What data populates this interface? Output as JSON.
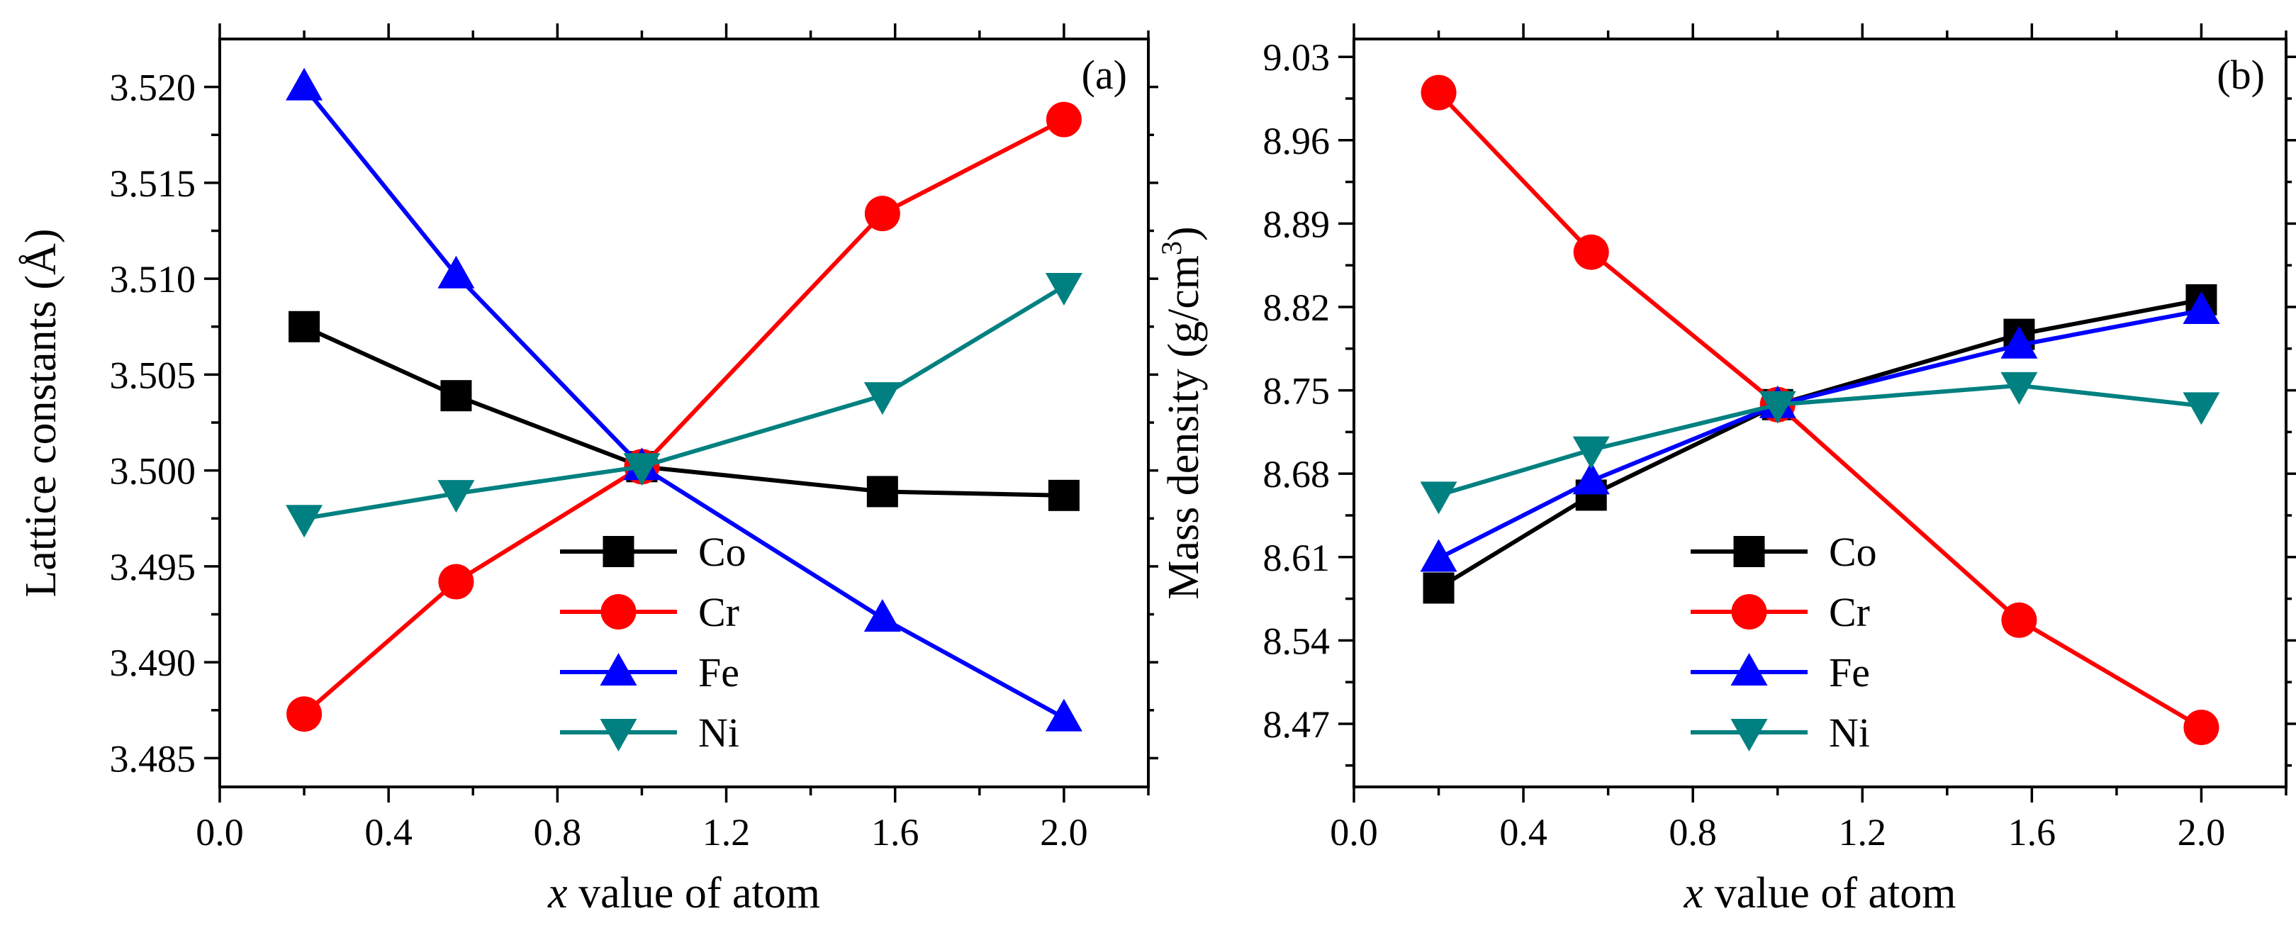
{
  "figure": {
    "panels": [
      {
        "label": "(a)"
      },
      {
        "label": "(b)"
      }
    ]
  },
  "chart_data": [
    {
      "type": "line",
      "panel": "(a)",
      "title": "",
      "xlabel_italic": "x",
      "xlabel_rest": " value of atom",
      "ylabel": "Lattice constants (Å)",
      "xlim": [
        0.0,
        2.2
      ],
      "ylim": [
        3.4835,
        3.5225
      ],
      "xticks": [
        0.0,
        0.4,
        0.8,
        1.2,
        1.6,
        2.0
      ],
      "xtick_labels": [
        "0.0",
        "0.4",
        "0.8",
        "1.2",
        "1.6",
        "2.0"
      ],
      "yticks": [
        3.485,
        3.49,
        3.495,
        3.5,
        3.505,
        3.51,
        3.515,
        3.52
      ],
      "ytick_labels": [
        "3.485",
        "3.490",
        "3.495",
        "3.500",
        "3.505",
        "3.510",
        "3.515",
        "3.520"
      ],
      "x": [
        0.2,
        0.56,
        1.0,
        1.57,
        2.0
      ],
      "legend_position": "bottom-center",
      "series": [
        {
          "name": "Co",
          "color": "#000000",
          "marker": "square",
          "values": [
            3.5075,
            3.5039,
            3.5002,
            3.4989,
            3.4987
          ]
        },
        {
          "name": "Cr",
          "color": "#ff0000",
          "marker": "circle",
          "values": [
            3.4873,
            3.4942,
            3.5002,
            3.5134,
            3.5183
          ]
        },
        {
          "name": "Fe",
          "color": "#0000ff",
          "marker": "triangle-up",
          "values": [
            3.52,
            3.5102,
            3.5002,
            3.4923,
            3.4871
          ]
        },
        {
          "name": "Ni",
          "color": "#008080",
          "marker": "triangle-down",
          "values": [
            3.4975,
            3.4988,
            3.5002,
            3.5039,
            3.5096
          ]
        }
      ]
    },
    {
      "type": "line",
      "panel": "(b)",
      "title": "",
      "xlabel_italic": "x",
      "xlabel_rest": " value of atom",
      "ylabel": "Mass density (g/cm",
      "ylabel_sup": "3",
      "ylabel_end": ")",
      "xlim": [
        0.0,
        2.2
      ],
      "ylim": [
        8.417,
        9.045
      ],
      "xticks": [
        0.0,
        0.4,
        0.8,
        1.2,
        1.6,
        2.0
      ],
      "xtick_labels": [
        "0.0",
        "0.4",
        "0.8",
        "1.2",
        "1.6",
        "2.0"
      ],
      "yticks": [
        8.47,
        8.54,
        8.61,
        8.68,
        8.75,
        8.82,
        8.89,
        8.96,
        9.03
      ],
      "ytick_labels": [
        "8.47",
        "8.54",
        "8.61",
        "8.68",
        "8.75",
        "8.82",
        "8.89",
        "8.96",
        "9.03"
      ],
      "x": [
        0.2,
        0.56,
        1.0,
        1.57,
        2.0
      ],
      "legend_position": "bottom-center",
      "series": [
        {
          "name": "Co",
          "color": "#000000",
          "marker": "square",
          "values": [
            8.584,
            8.662,
            8.738,
            8.797,
            8.826
          ]
        },
        {
          "name": "Cr",
          "color": "#ff0000",
          "marker": "circle",
          "values": [
            9.0,
            8.866,
            8.738,
            8.557,
            8.467
          ]
        },
        {
          "name": "Fe",
          "color": "#0000ff",
          "marker": "triangle-up",
          "values": [
            8.609,
            8.674,
            8.738,
            8.788,
            8.817
          ]
        },
        {
          "name": "Ni",
          "color": "#008080",
          "marker": "triangle-down",
          "values": [
            8.662,
            8.7,
            8.738,
            8.754,
            8.737
          ]
        }
      ]
    }
  ]
}
